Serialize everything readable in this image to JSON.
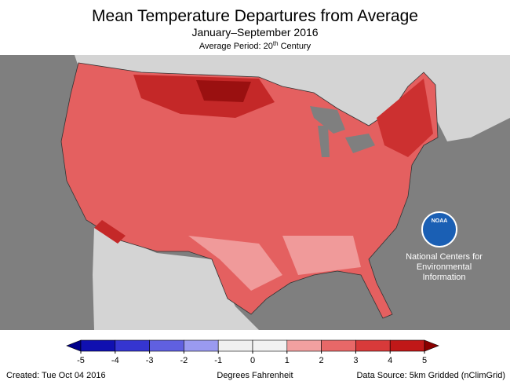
{
  "header": {
    "title": "Mean Temperature Departures from Average",
    "subtitle": "January–September 2016",
    "period": {
      "prefix": "Average Period: 20",
      "sup": "th",
      "suffix": " Century"
    }
  },
  "logo": {
    "name": "NOAA",
    "lines": [
      "National Centers for",
      "Environmental",
      "Information"
    ]
  },
  "legend": {
    "ticks": [
      -5,
      -4,
      -3,
      -2,
      -1,
      0,
      1,
      2,
      3,
      4,
      5
    ],
    "colors": [
      "#1010b0",
      "#3535d0",
      "#6060e0",
      "#9a9af0",
      "#f0f0f0",
      "#f2f2f2",
      "#f2a0a0",
      "#e86868",
      "#d83a3a",
      "#c01818"
    ],
    "under": "#00008a",
    "over": "#8a0000",
    "label": "Degrees Fahrenheit"
  },
  "footer": {
    "created": "Created: Tue Oct 04 2016",
    "source": "Data Source: 5km Gridded (nClimGrid)"
  }
}
